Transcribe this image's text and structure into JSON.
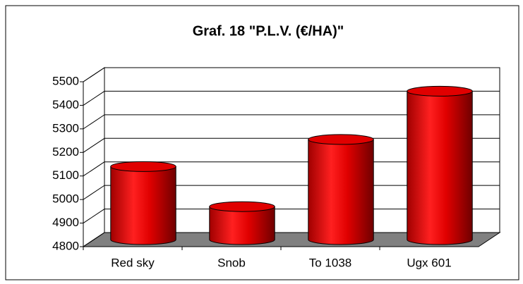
{
  "chart_data": {
    "type": "bar3d",
    "title": "Graf. 18 \"P.L.V. (€/HA)\"",
    "categories": [
      "Red sky",
      "Snob",
      "To 1038",
      "Ugx 601"
    ],
    "values": [
      5110,
      4940,
      5225,
      5430
    ],
    "color": "#ff0000",
    "ylim": [
      4800,
      5500
    ],
    "yticks": [
      4800,
      4900,
      5000,
      5100,
      5200,
      5300,
      5400,
      5500
    ],
    "grid": true
  }
}
